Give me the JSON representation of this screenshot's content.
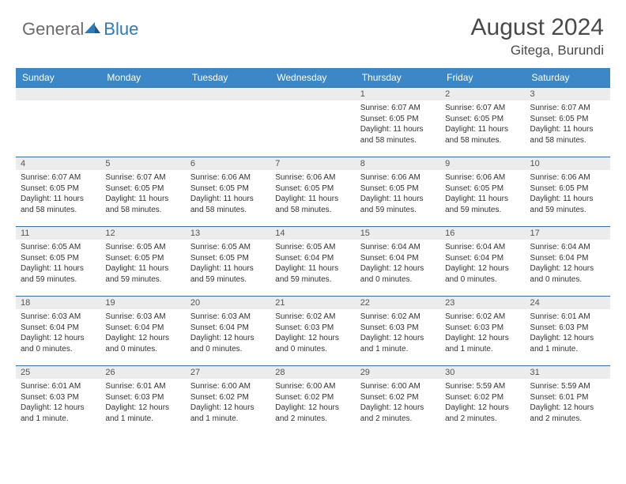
{
  "logo": {
    "general": "General",
    "blue": "Blue"
  },
  "title": "August 2024",
  "location": "Gitega, Burundi",
  "colors": {
    "header_bar": "#3b87c8",
    "week_border": "#2f6fa3",
    "daynum_bg": "#ececec",
    "logo_general": "#6b6b6b",
    "logo_blue": "#2f7ab8",
    "title_color": "#4a4a4a",
    "text_color": "#333333"
  },
  "daynames": [
    "Sunday",
    "Monday",
    "Tuesday",
    "Wednesday",
    "Thursday",
    "Friday",
    "Saturday"
  ],
  "weeks": [
    [
      null,
      null,
      null,
      null,
      {
        "n": "1",
        "sr": "6:07 AM",
        "ss": "6:05 PM",
        "dl": "11 hours and 58 minutes."
      },
      {
        "n": "2",
        "sr": "6:07 AM",
        "ss": "6:05 PM",
        "dl": "11 hours and 58 minutes."
      },
      {
        "n": "3",
        "sr": "6:07 AM",
        "ss": "6:05 PM",
        "dl": "11 hours and 58 minutes."
      }
    ],
    [
      {
        "n": "4",
        "sr": "6:07 AM",
        "ss": "6:05 PM",
        "dl": "11 hours and 58 minutes."
      },
      {
        "n": "5",
        "sr": "6:07 AM",
        "ss": "6:05 PM",
        "dl": "11 hours and 58 minutes."
      },
      {
        "n": "6",
        "sr": "6:06 AM",
        "ss": "6:05 PM",
        "dl": "11 hours and 58 minutes."
      },
      {
        "n": "7",
        "sr": "6:06 AM",
        "ss": "6:05 PM",
        "dl": "11 hours and 58 minutes."
      },
      {
        "n": "8",
        "sr": "6:06 AM",
        "ss": "6:05 PM",
        "dl": "11 hours and 59 minutes."
      },
      {
        "n": "9",
        "sr": "6:06 AM",
        "ss": "6:05 PM",
        "dl": "11 hours and 59 minutes."
      },
      {
        "n": "10",
        "sr": "6:06 AM",
        "ss": "6:05 PM",
        "dl": "11 hours and 59 minutes."
      }
    ],
    [
      {
        "n": "11",
        "sr": "6:05 AM",
        "ss": "6:05 PM",
        "dl": "11 hours and 59 minutes."
      },
      {
        "n": "12",
        "sr": "6:05 AM",
        "ss": "6:05 PM",
        "dl": "11 hours and 59 minutes."
      },
      {
        "n": "13",
        "sr": "6:05 AM",
        "ss": "6:05 PM",
        "dl": "11 hours and 59 minutes."
      },
      {
        "n": "14",
        "sr": "6:05 AM",
        "ss": "6:04 PM",
        "dl": "11 hours and 59 minutes."
      },
      {
        "n": "15",
        "sr": "6:04 AM",
        "ss": "6:04 PM",
        "dl": "12 hours and 0 minutes."
      },
      {
        "n": "16",
        "sr": "6:04 AM",
        "ss": "6:04 PM",
        "dl": "12 hours and 0 minutes."
      },
      {
        "n": "17",
        "sr": "6:04 AM",
        "ss": "6:04 PM",
        "dl": "12 hours and 0 minutes."
      }
    ],
    [
      {
        "n": "18",
        "sr": "6:03 AM",
        "ss": "6:04 PM",
        "dl": "12 hours and 0 minutes."
      },
      {
        "n": "19",
        "sr": "6:03 AM",
        "ss": "6:04 PM",
        "dl": "12 hours and 0 minutes."
      },
      {
        "n": "20",
        "sr": "6:03 AM",
        "ss": "6:04 PM",
        "dl": "12 hours and 0 minutes."
      },
      {
        "n": "21",
        "sr": "6:02 AM",
        "ss": "6:03 PM",
        "dl": "12 hours and 0 minutes."
      },
      {
        "n": "22",
        "sr": "6:02 AM",
        "ss": "6:03 PM",
        "dl": "12 hours and 1 minute."
      },
      {
        "n": "23",
        "sr": "6:02 AM",
        "ss": "6:03 PM",
        "dl": "12 hours and 1 minute."
      },
      {
        "n": "24",
        "sr": "6:01 AM",
        "ss": "6:03 PM",
        "dl": "12 hours and 1 minute."
      }
    ],
    [
      {
        "n": "25",
        "sr": "6:01 AM",
        "ss": "6:03 PM",
        "dl": "12 hours and 1 minute."
      },
      {
        "n": "26",
        "sr": "6:01 AM",
        "ss": "6:03 PM",
        "dl": "12 hours and 1 minute."
      },
      {
        "n": "27",
        "sr": "6:00 AM",
        "ss": "6:02 PM",
        "dl": "12 hours and 1 minute."
      },
      {
        "n": "28",
        "sr": "6:00 AM",
        "ss": "6:02 PM",
        "dl": "12 hours and 2 minutes."
      },
      {
        "n": "29",
        "sr": "6:00 AM",
        "ss": "6:02 PM",
        "dl": "12 hours and 2 minutes."
      },
      {
        "n": "30",
        "sr": "5:59 AM",
        "ss": "6:02 PM",
        "dl": "12 hours and 2 minutes."
      },
      {
        "n": "31",
        "sr": "5:59 AM",
        "ss": "6:01 PM",
        "dl": "12 hours and 2 minutes."
      }
    ]
  ],
  "labels": {
    "sunrise": "Sunrise:",
    "sunset": "Sunset:",
    "daylight": "Daylight:"
  }
}
